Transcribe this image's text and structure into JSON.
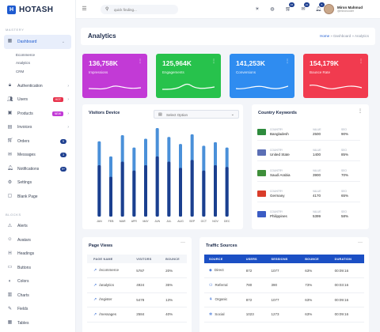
{
  "app": {
    "logo_text": "HOTASH",
    "logo_letter": "H"
  },
  "sidebar": {
    "section1": "MASTERY",
    "dashboard_label": "Dashboard",
    "sub_items": [
      "Ecommerce",
      "Analytics",
      "CRM"
    ],
    "items": [
      {
        "label": "Authentication"
      },
      {
        "label": "Users",
        "badge": "HOT",
        "badge_color": "#e8344d"
      },
      {
        "label": "Products",
        "badge": "NEW",
        "badge_color": "#c23ad6"
      },
      {
        "label": "Invoices"
      },
      {
        "label": "Orders",
        "count": "5"
      },
      {
        "label": "Messages",
        "count": "3"
      },
      {
        "label": "Notifications",
        "count": "9+"
      },
      {
        "label": "Settings"
      },
      {
        "label": "Blank Page"
      }
    ],
    "section2": "BLOCKS",
    "blocks": [
      "Alerts",
      "Avatars",
      "Headings",
      "Buttons",
      "Colors",
      "Charts",
      "Fields",
      "Tables"
    ]
  },
  "topbar": {
    "search_placeholder": "quick finding...",
    "notif_counts": [
      "15",
      "21",
      "5"
    ],
    "user_name": "Miron Mahmud",
    "user_handle": "@mironcoder"
  },
  "page": {
    "title": "Analytics",
    "breadcrumb": [
      "Home",
      "Dashboard",
      "Analytics"
    ]
  },
  "stats": [
    {
      "value": "136,758K",
      "label": "Impressions",
      "color": "#c23ad6"
    },
    {
      "value": "125,964K",
      "label": "Engagements",
      "color": "#27c24c"
    },
    {
      "value": "141,253K",
      "label": "Conversions",
      "color": "#2f8cf0"
    },
    {
      "value": "154,179K",
      "label": "Bounce Rate",
      "color": "#f13b4f"
    }
  ],
  "visitors": {
    "title": "Visitors Device",
    "select_value": "Select Option"
  },
  "chart_data": {
    "type": "bar",
    "categories": [
      "JAN",
      "FEB",
      "MAR",
      "APR",
      "MAY",
      "JUN",
      "JUL",
      "AUG",
      "SEP",
      "OCT",
      "NOV",
      "DEC"
    ],
    "series": [
      {
        "values": [
          85,
          68,
          92,
          78,
          88,
          100,
          90,
          82,
          93,
          80,
          84,
          78
        ],
        "color": "#4a90d9"
      },
      {
        "values": [
          58,
          45,
          62,
          52,
          58,
          68,
          62,
          55,
          64,
          52,
          58,
          56
        ],
        "color": "#1b3f8f"
      }
    ]
  },
  "keywords": {
    "title": "Country Keywords",
    "col_country": "COUNTRY",
    "col_value": "VALUE",
    "col_seo": "SEO",
    "rows": [
      {
        "country": "Bangladesh",
        "value": "2500",
        "seo": "90%",
        "flag": "#2e8b3d"
      },
      {
        "country": "United State",
        "value": "1400",
        "seo": "85%",
        "flag": "#5b6fb5"
      },
      {
        "country": "Saudi Arabia",
        "value": "3900",
        "seo": "70%",
        "flag": "#3f8f3a"
      },
      {
        "country": "Germany",
        "value": "4170",
        "seo": "65%",
        "flag": "#d93c2a"
      },
      {
        "country": "Philippines",
        "value": "5399",
        "seo": "58%",
        "flag": "#3b5cc4"
      }
    ]
  },
  "page_views": {
    "title": "Page Views",
    "headers": [
      "PAGE NAME",
      "VISITORS",
      "BOUNCE"
    ],
    "rows": [
      [
        "/ecommerce",
        "5787",
        "20%"
      ],
      [
        "/analytics",
        "4924",
        "35%"
      ],
      [
        "/register",
        "5478",
        "13%"
      ],
      [
        "/messages",
        "2584",
        "40%"
      ]
    ]
  },
  "traffic": {
    "title": "Traffic Sources",
    "headers": [
      "SOURCE",
      "USERS",
      "SESSIONS",
      "BOUNCE",
      "DURATION"
    ],
    "rows": [
      [
        "Direct",
        "872",
        "1077",
        "63%",
        "00:09:16"
      ],
      [
        "Referral",
        "780",
        "390",
        "73%",
        "00:03:16"
      ],
      [
        "Organic",
        "872",
        "1077",
        "63%",
        "00:09:16"
      ],
      [
        "Social",
        "1023",
        "1273",
        "63%",
        "00:09:16"
      ]
    ]
  }
}
